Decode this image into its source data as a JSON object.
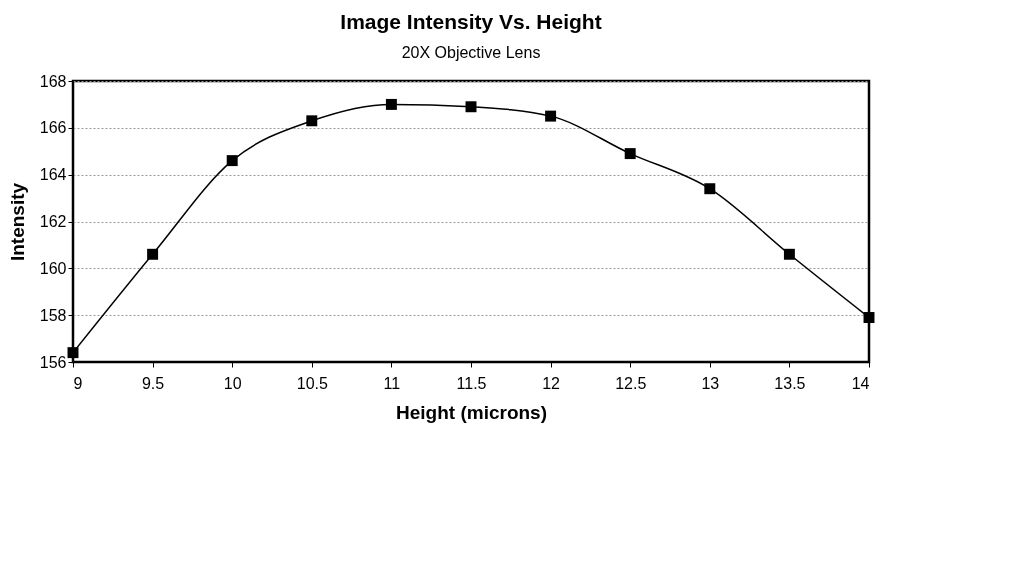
{
  "chart_data": {
    "type": "line",
    "title": "Image Intensity Vs. Height",
    "subtitle": "20X Objective Lens",
    "xlabel": "Height (microns)",
    "ylabel": "Intensity",
    "x": [
      9,
      9.5,
      10,
      10.5,
      11,
      11.5,
      12,
      12.5,
      13,
      13.5,
      14
    ],
    "series": [
      {
        "color": "#000000",
        "values": [
          156.4,
          160.6,
          164.6,
          166.3,
          167.0,
          166.9,
          166.5,
          164.9,
          163.4,
          160.6,
          157.9
        ]
      }
    ],
    "xlim": [
      9,
      14
    ],
    "xticks": [
      9,
      9.5,
      10,
      10.5,
      11,
      11.5,
      12,
      12.5,
      13,
      13.5,
      14
    ],
    "ylim": [
      156,
      168
    ],
    "yticks": [
      156,
      158,
      160,
      162,
      164,
      166,
      168
    ],
    "grid": "y",
    "marker": "square",
    "line_style": "solid",
    "legend": false
  }
}
